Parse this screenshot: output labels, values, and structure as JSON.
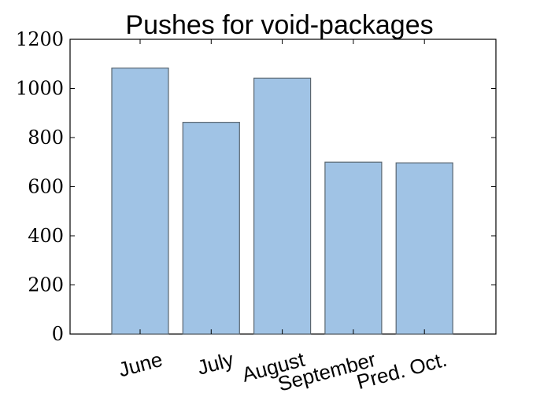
{
  "chart_data": {
    "type": "bar",
    "title": "Pushes for void-packages",
    "xlabel": "",
    "ylabel": "",
    "categories": [
      "June",
      "July",
      "August",
      "September",
      "Pred. Oct."
    ],
    "values": [
      1083,
      862,
      1042,
      700,
      697
    ],
    "ylim": [
      0,
      1200
    ],
    "yticks": [
      "0",
      "200",
      "400",
      "600",
      "800",
      "1000",
      "1200"
    ],
    "grid": false,
    "colors": {
      "bar_fill": "#a0c3e5",
      "bar_edge": "#5a6670"
    }
  }
}
